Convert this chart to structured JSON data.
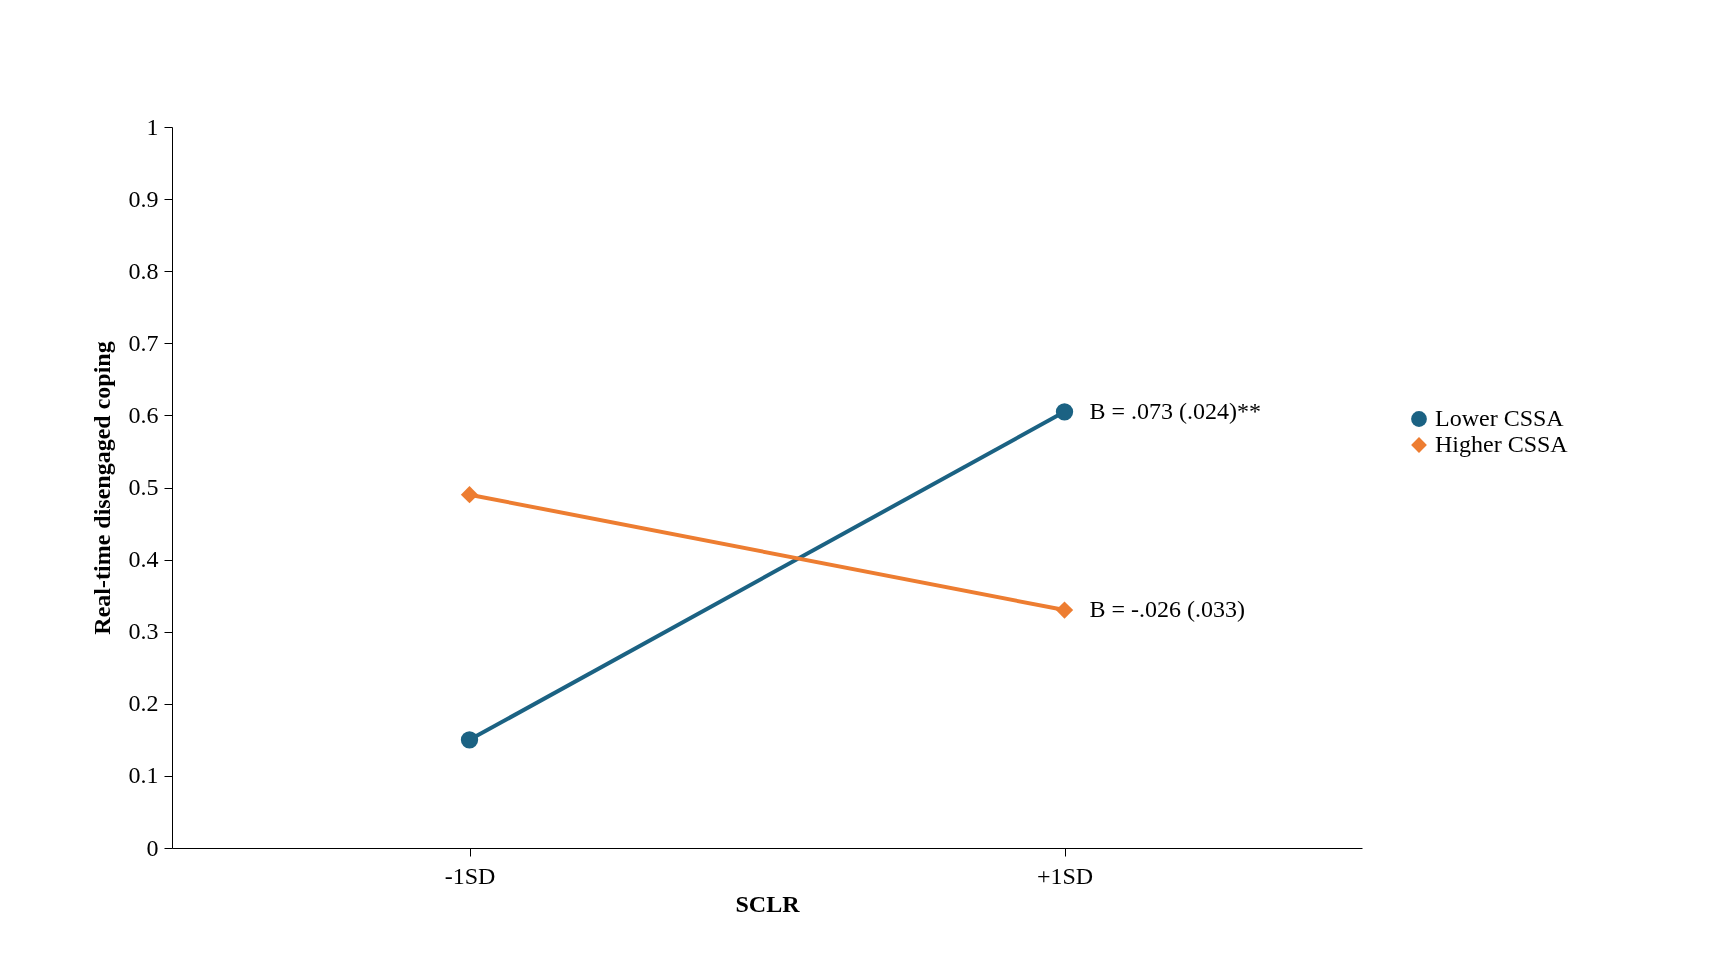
{
  "chart_data": {
    "type": "line",
    "xlabel": "SCLR",
    "ylabel": "Real-time disengaged coping",
    "categories": [
      "-1SD",
      "+1SD"
    ],
    "series": [
      {
        "name": "Lower CSSA",
        "color": "#1b6283",
        "values": [
          0.15,
          0.605
        ],
        "marker": "circle"
      },
      {
        "name": "Higher CSSA",
        "color": "#ed7d31",
        "values": [
          0.49,
          0.33
        ],
        "marker": "diamond"
      }
    ],
    "ylim": [
      0,
      1
    ],
    "yticks": [
      0,
      0.1,
      0.2,
      0.3,
      0.4,
      0.5,
      0.6,
      0.7,
      0.8,
      0.9,
      1
    ],
    "annotations": [
      {
        "text": "B = .073 (.024)**",
        "x": "+1SD",
        "y": 0.605
      },
      {
        "text": "B = -.026 (.033)",
        "x": "+1SD",
        "y": 0.33
      }
    ],
    "grid": false,
    "legend": "right",
    "line_style": "solid"
  }
}
